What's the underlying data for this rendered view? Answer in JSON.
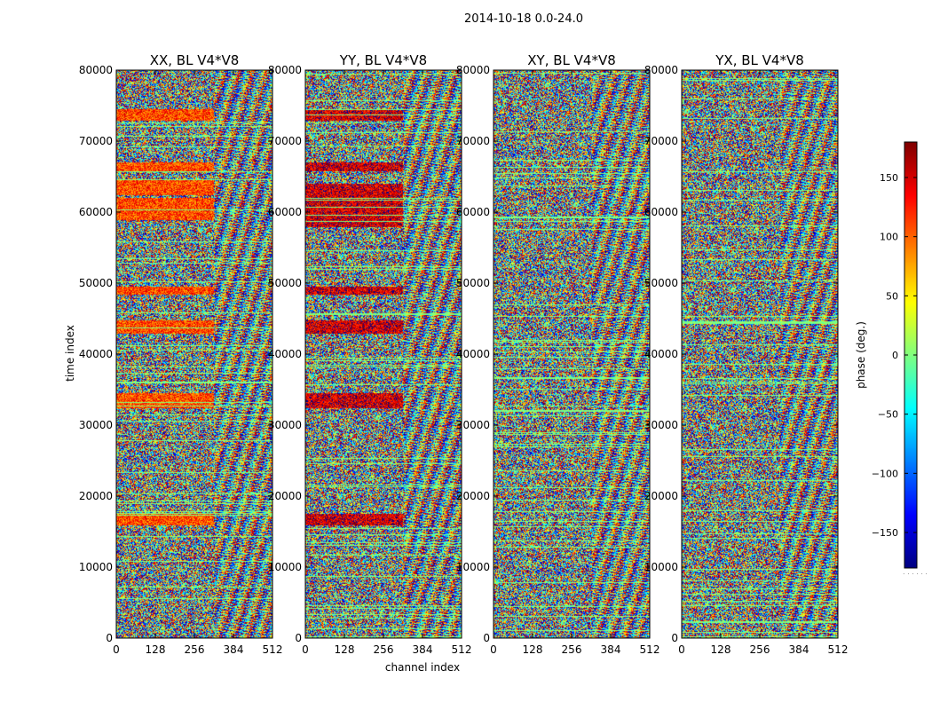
{
  "suptitle": "2014-10-18 0.0-24.0",
  "ylabel": "time index",
  "xlabel": "channel index",
  "colorbar": {
    "label": "phase (deg.)",
    "ticks": [
      150,
      100,
      50,
      0,
      -50,
      -100,
      -150
    ],
    "tick_labels": [
      "150",
      "100",
      "50",
      "0",
      "−50",
      "−100",
      "−150"
    ],
    "range": [
      -180,
      180
    ],
    "colormap": "jet"
  },
  "chart_data": {
    "type": "heatmap",
    "title": "2014-10-18 0.0-24.0",
    "xlabel": "channel index",
    "ylabel": "time index",
    "xlim": [
      0,
      512
    ],
    "ylim": [
      0,
      80000
    ],
    "x_ticks": [
      0,
      128,
      256,
      384,
      512
    ],
    "y_ticks": [
      0,
      10000,
      20000,
      30000,
      40000,
      50000,
      60000,
      70000,
      80000
    ],
    "value_range": [
      -180,
      180
    ],
    "value_label": "phase (deg.)",
    "panels": [
      {
        "title": "XX, BL V4*V8",
        "bias_bands": [
          [
            73000,
            74500
          ],
          [
            65800,
            67000
          ],
          [
            62500,
            64500
          ],
          [
            59000,
            62000
          ],
          [
            48500,
            49500
          ],
          [
            43000,
            44800
          ],
          [
            32500,
            34500
          ],
          [
            16000,
            17500
          ]
        ],
        "bias_phase": 110
      },
      {
        "title": "YY, BL V4*V8",
        "bias_bands": [
          [
            73000,
            74500
          ],
          [
            65800,
            67000
          ],
          [
            58000,
            64000
          ],
          [
            48500,
            49500
          ],
          [
            43000,
            44800
          ],
          [
            32500,
            34500
          ],
          [
            16000,
            17500
          ]
        ],
        "bias_phase": 150
      },
      {
        "title": "XY, BL V4*V8",
        "bias_bands": [],
        "bias_phase": 0
      },
      {
        "title": "YX, BL V4*V8",
        "bias_bands": [],
        "bias_phase": 0
      }
    ]
  }
}
